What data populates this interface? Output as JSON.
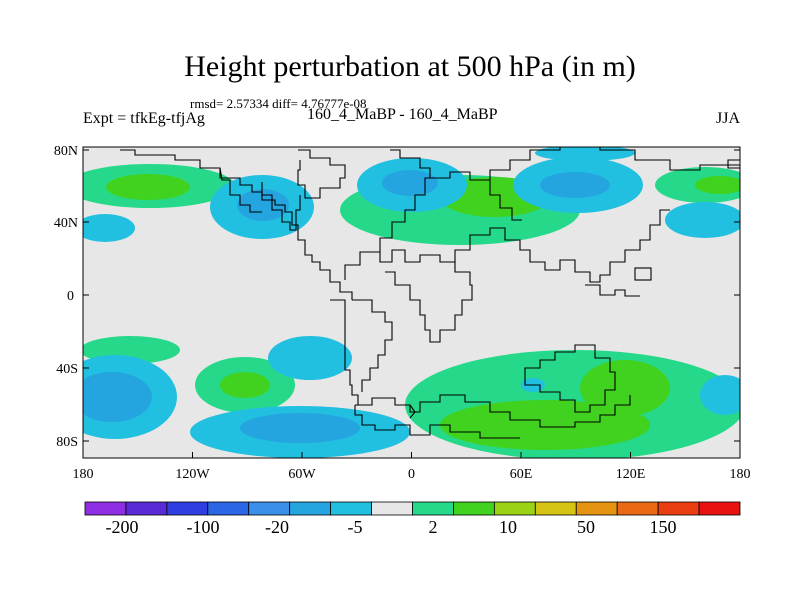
{
  "title": "Height perturbation at 500 hPa (in m)",
  "stats": "rmsd= 2.57334 diff= 4.76777e-08",
  "expt": "Expt = tfkEg-tfjAg",
  "subtitle": "160_4_MaBP - 160_4_MaBP",
  "season": "JJA",
  "lat_labels": [
    "80N",
    "40N",
    "0",
    "40S",
    "80S"
  ],
  "lon_labels": [
    "180",
    "120W",
    "60W",
    "0",
    "60E",
    "120E",
    "180"
  ],
  "colorbar": {
    "colors": [
      "#8e2de1",
      "#5a2ad6",
      "#2f3ee0",
      "#2a66e6",
      "#3a8fe8",
      "#25a5e0",
      "#22c0e0",
      "#e7e7e7",
      "#26d98a",
      "#40d21e",
      "#9ad214",
      "#d6c414",
      "#e59412",
      "#e96a12",
      "#ea3e12",
      "#e81210"
    ],
    "labels": [
      "-200",
      "-100",
      "-20",
      "-5",
      "2",
      "10",
      "50",
      "150"
    ]
  },
  "colors": {
    "background": "#e7e7e7",
    "coastline": "#000000"
  }
}
